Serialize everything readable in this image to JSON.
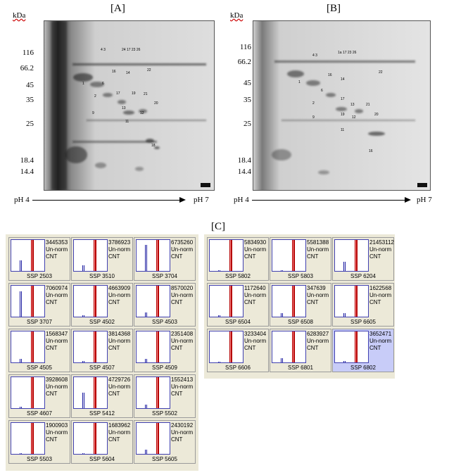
{
  "panels": {
    "a_label": "[A]",
    "b_label": "[B]",
    "c_label": "[C]"
  },
  "mw_axis": {
    "unit": "kDa",
    "markers": [
      "116",
      "66.2",
      "45",
      "35",
      "25",
      "18.4",
      "14.4"
    ]
  },
  "ph_axis": {
    "start": "pH 4",
    "end": "pH 7"
  },
  "gel_a_spot_labels": [
    "4",
    "3",
    "24",
    "17",
    "23",
    "26",
    "16",
    "14",
    "22",
    "6",
    "1",
    "2",
    "17",
    "19",
    "21",
    "7",
    "13",
    "12",
    "9",
    "20",
    "11",
    "18"
  ],
  "gel_b_spot_labels": [
    "4",
    "3",
    "1a",
    "17",
    "23",
    "26",
    "16",
    "14",
    "22",
    "6",
    "1",
    "2",
    "17",
    "13",
    "21",
    "7",
    "19",
    "12",
    "9",
    "20",
    "11",
    "16"
  ],
  "cards_left": [
    {
      "value": "3445353",
      "line2": "Un-norm",
      "line3": "CNT",
      "caption": "SSP 2503",
      "blue": [
        0,
        0.35
      ],
      "selected": false
    },
    {
      "value": "3786923",
      "line2": "Un-norm",
      "line3": "CNT",
      "caption": "SSP 3510",
      "blue": [
        0,
        0.18
      ],
      "selected": false
    },
    {
      "value": "6735260",
      "line2": "Un-norm",
      "line3": "CNT",
      "caption": "SSP 3704",
      "blue": [
        0,
        0.85
      ],
      "selected": false
    },
    {
      "value": "7060974",
      "line2": "Un-norm",
      "line3": "CNT",
      "caption": "SSP 3707",
      "blue": [
        0,
        0.82
      ],
      "selected": false
    },
    {
      "value": "4663909",
      "line2": "Un-norm",
      "line3": "CNT",
      "caption": "SSP 4502",
      "blue": [
        0,
        0.04
      ],
      "selected": false
    },
    {
      "value": "8570020",
      "line2": "Un-norm",
      "line3": "CNT",
      "caption": "SSP 4503",
      "blue": [
        0,
        0.14
      ],
      "selected": false
    },
    {
      "value": "1568347",
      "line2": "Un-norm",
      "line3": "CNT",
      "caption": "SSP 4505",
      "blue": [
        0,
        0.12
      ],
      "selected": false
    },
    {
      "value": "3814368",
      "line2": "Un-norm",
      "line3": "CNT",
      "caption": "SSP 4507",
      "blue": [
        0,
        0.04
      ],
      "selected": false
    },
    {
      "value": "2351408",
      "line2": "Un-norm",
      "line3": "CNT",
      "caption": "SSP 4509",
      "blue": [
        0,
        0.12
      ],
      "selected": false
    },
    {
      "value": "3928608",
      "line2": "Un-norm",
      "line3": "CNT",
      "caption": "SSP 4607",
      "blue": [
        0,
        0.05
      ],
      "selected": false
    },
    {
      "value": "4729726",
      "line2": "Un-norm",
      "line3": "CNT",
      "caption": "SSP 5412",
      "blue": [
        0,
        0.5
      ],
      "selected": false
    },
    {
      "value": "1552413",
      "line2": "Un-norm",
      "line3": "CNT",
      "caption": "SSP 5502",
      "blue": [
        0,
        0.12
      ],
      "selected": false
    },
    {
      "value": "1900903",
      "line2": "Un-norm",
      "line3": "CNT",
      "caption": "SSP 5503",
      "blue": [
        0,
        0.03
      ],
      "selected": false
    },
    {
      "value": "1683962",
      "line2": "Un-norm",
      "line3": "CNT",
      "caption": "SSP 5604",
      "blue": [
        0,
        0.03
      ],
      "selected": false
    },
    {
      "value": "2430192",
      "line2": "Un-norm",
      "line3": "CNT",
      "caption": "SSP 5605",
      "blue": [
        0,
        0.14
      ],
      "selected": false
    }
  ],
  "cards_right": [
    {
      "value": "5834930",
      "line2": "Un-norm",
      "line3": "CNT",
      "caption": "SSP 5802",
      "blue": [
        0,
        0.03
      ],
      "selected": false
    },
    {
      "value": "5581388",
      "line2": "Un-norm",
      "line3": "CNT",
      "caption": "SSP 5803",
      "blue": [
        0,
        0.03
      ],
      "selected": false
    },
    {
      "value": "21453112",
      "line2": "Un-norm",
      "line3": "CNT",
      "caption": "SSP 6204",
      "blue": [
        0,
        0.3
      ],
      "selected": false
    },
    {
      "value": "1172640",
      "line2": "Un-norm",
      "line3": "CNT",
      "caption": "SSP 6504",
      "blue": [
        0,
        0.04
      ],
      "selected": false
    },
    {
      "value": "347639",
      "line2": "Un-norm",
      "line3": "CNT",
      "caption": "SSP 6508",
      "blue": [
        0,
        0.12
      ],
      "selected": false
    },
    {
      "value": "1622568",
      "line2": "Un-norm",
      "line3": "CNT",
      "caption": "SSP 6605",
      "blue": [
        0,
        0.12
      ],
      "selected": false
    },
    {
      "value": "3233404",
      "line2": "Un-norm",
      "line3": "CNT",
      "caption": "SSP 6606",
      "blue": [
        0,
        0.03
      ],
      "selected": false
    },
    {
      "value": "6283927",
      "line2": "Un-norm",
      "line3": "CNT",
      "caption": "SSP 6801",
      "blue": [
        0,
        0.14
      ],
      "selected": false
    },
    {
      "value": "3652471",
      "line2": "Un-norm",
      "line3": "CNT",
      "caption": "SSP 6802",
      "blue": [
        0,
        0.05
      ],
      "selected": true
    }
  ]
}
